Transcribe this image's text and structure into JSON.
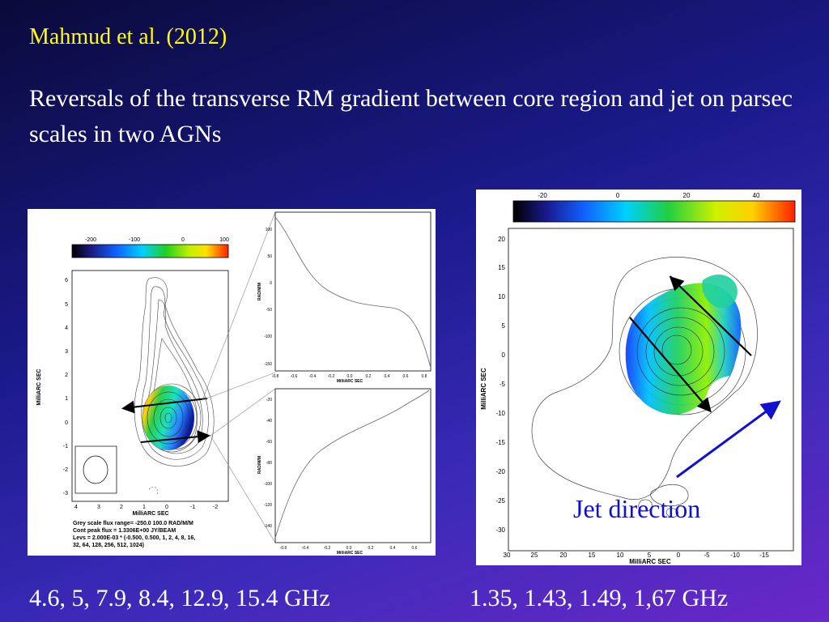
{
  "slide": {
    "reference": "Mahmud et al. (2012)",
    "title": "Reversals of the transverse RM gradient between core region and jet on parsec scales in two AGNs",
    "freq_left": "4.6, 5, 7.9, 8.4, 12.9, 15.4 GHz",
    "freq_right": "1.35, 1.43, 1.49, 1,67 GHz",
    "jet_label": "Jet direction"
  },
  "left_figure": {
    "colorbar_ticks": [
      "-200",
      "-100",
      "0",
      "100"
    ],
    "x_ticks": [
      "4",
      "3",
      "2",
      "1",
      "0",
      "-1",
      "-2"
    ],
    "y_ticks": [
      "6",
      "5",
      "4",
      "3",
      "2",
      "1",
      "0",
      "-1",
      "-2",
      "-3"
    ],
    "x_label": "MilliARC SEC",
    "y_label": "MilliARC SEC",
    "caption": [
      "Grey scale flux range= -250.0 100.0 RAD/M/M",
      "Cont peak flux =  1.3306E+00 JY/BEAM",
      "Levs = 2.000E-03 * (-0.500, 0.500, 1, 2, 4, 8, 16,",
      "32, 64, 128, 256, 512, 1024)"
    ],
    "top_slice": {
      "y_ticks": [
        "100",
        "50",
        "0",
        "-50",
        "-100",
        "-150"
      ],
      "x_ticks": [
        "-0.8",
        "-0.6",
        "-0.4",
        "-0.2",
        "0.0",
        "0.2",
        "0.4",
        "0.6",
        "0.8"
      ],
      "y_label": "RAD/M/M",
      "x_label": "MilliARC SEC"
    },
    "bottom_slice": {
      "y_ticks": [
        "-20",
        "-40",
        "-60",
        "-80",
        "-100",
        "-120",
        "-140"
      ],
      "x_ticks": [
        "-0.6",
        "-0.4",
        "-0.2",
        "0.0",
        "0.2",
        "0.4",
        "0.6"
      ],
      "y_label": "RAD/M/M",
      "x_label": "MilliARC SEC"
    }
  },
  "right_figure": {
    "colorbar_ticks": [
      "-20",
      "0",
      "20",
      "40"
    ],
    "x_ticks": [
      "30",
      "25",
      "20",
      "15",
      "10",
      "5",
      "0",
      "-5",
      "-10",
      "-15"
    ],
    "y_ticks": [
      "20",
      "15",
      "10",
      "5",
      "0",
      "-5",
      "-10",
      "-15",
      "-20",
      "-25",
      "-30"
    ],
    "x_label": "MilliARC SEC",
    "y_label": "MilliARC SEC"
  },
  "colors": {
    "reference": "#ffff00",
    "title": "#ffffff",
    "jet_arrow": "#1010d0"
  }
}
